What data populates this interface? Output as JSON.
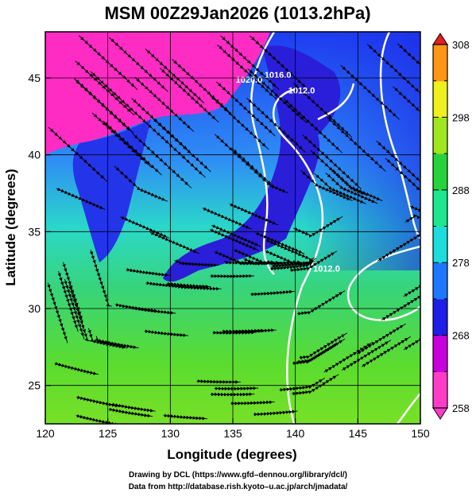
{
  "chart_data": {
    "type": "heatmap",
    "title": "MSM 00Z29Jan2026 (1013.2hPa)",
    "xlabel": "Longitude (degrees)",
    "ylabel": "Latitude  (degrees)",
    "xlim": [
      120,
      150
    ],
    "ylim": [
      22.5,
      48
    ],
    "xticks": [
      "120",
      "125",
      "130",
      "135",
      "140",
      "145",
      "150"
    ],
    "yticks": [
      "25",
      "30",
      "35",
      "40",
      "45"
    ],
    "grid": true,
    "colorbar": {
      "range": [
        258,
        308
      ],
      "labels": [
        "258",
        "268",
        "278",
        "288",
        "298",
        "308"
      ],
      "colors": {
        "258": "#ff3cc8",
        "263": "#c800dc",
        "268": "#1e1ee6",
        "273": "#1e78ff",
        "278": "#1edcdc",
        "283": "#1ee68c",
        "288": "#28d23c",
        "293": "#a0e61e",
        "298": "#f0f01e",
        "303": "#ff9614",
        "308": "#e61e1e"
      }
    },
    "contours": [
      {
        "label": "1016.0",
        "lon": 138.6,
        "lat": 45.0
      },
      {
        "label": "1020.0",
        "lon": 136.3,
        "lat": 44.7
      },
      {
        "label": "1012.0",
        "lon": 140.5,
        "lat": 44.0
      },
      {
        "label": "1012.0",
        "lon": 142.5,
        "lat": 32.4
      }
    ]
  },
  "credits": {
    "line1": "Drawing by DCL (https://www.gfd–dennou.org/library/dcl/)",
    "line2": "Data from http://database.rish.kyoto–u.ac.jp/arch/jmadata/"
  }
}
